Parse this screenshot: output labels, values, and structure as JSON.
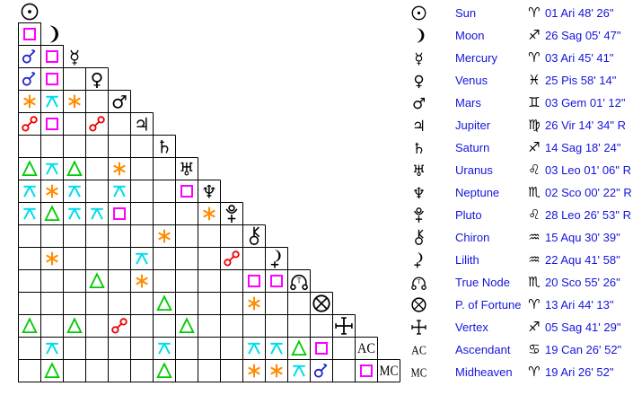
{
  "colors": {
    "conjunction": "#2323cc",
    "opposition": "#f00000",
    "square": "#ff00ff",
    "trine": "#00cc00",
    "sextile": "#ff8c00",
    "quincunx": "#00dcec",
    "table_text": "#1414dd",
    "glyph": "#000000"
  },
  "grid": {
    "planets": [
      "sun",
      "moon",
      "mercury",
      "venus",
      "mars",
      "jupiter",
      "saturn",
      "uranus",
      "neptune",
      "pluto",
      "chiron",
      "lilith",
      "true_node",
      "fortune",
      "vertex",
      "ac",
      "mc"
    ],
    "aspects": [
      {
        "row": 1,
        "col": 0,
        "aspect": "square"
      },
      {
        "row": 2,
        "col": 0,
        "aspect": "conjunction"
      },
      {
        "row": 2,
        "col": 1,
        "aspect": "square"
      },
      {
        "row": 3,
        "col": 0,
        "aspect": "conjunction"
      },
      {
        "row": 3,
        "col": 1,
        "aspect": "square"
      },
      {
        "row": 4,
        "col": 0,
        "aspect": "sextile"
      },
      {
        "row": 4,
        "col": 1,
        "aspect": "quincunx"
      },
      {
        "row": 4,
        "col": 2,
        "aspect": "sextile"
      },
      {
        "row": 5,
        "col": 0,
        "aspect": "opposition"
      },
      {
        "row": 5,
        "col": 1,
        "aspect": "square"
      },
      {
        "row": 5,
        "col": 3,
        "aspect": "opposition"
      },
      {
        "row": 7,
        "col": 0,
        "aspect": "trine"
      },
      {
        "row": 7,
        "col": 1,
        "aspect": "quincunx"
      },
      {
        "row": 7,
        "col": 2,
        "aspect": "trine"
      },
      {
        "row": 7,
        "col": 4,
        "aspect": "sextile"
      },
      {
        "row": 8,
        "col": 0,
        "aspect": "quincunx"
      },
      {
        "row": 8,
        "col": 1,
        "aspect": "sextile"
      },
      {
        "row": 8,
        "col": 2,
        "aspect": "quincunx"
      },
      {
        "row": 8,
        "col": 4,
        "aspect": "quincunx"
      },
      {
        "row": 8,
        "col": 7,
        "aspect": "square"
      },
      {
        "row": 9,
        "col": 0,
        "aspect": "quincunx"
      },
      {
        "row": 9,
        "col": 1,
        "aspect": "trine"
      },
      {
        "row": 9,
        "col": 2,
        "aspect": "quincunx"
      },
      {
        "row": 9,
        "col": 3,
        "aspect": "quincunx"
      },
      {
        "row": 9,
        "col": 4,
        "aspect": "square"
      },
      {
        "row": 9,
        "col": 8,
        "aspect": "sextile"
      },
      {
        "row": 10,
        "col": 6,
        "aspect": "sextile"
      },
      {
        "row": 11,
        "col": 1,
        "aspect": "sextile"
      },
      {
        "row": 11,
        "col": 5,
        "aspect": "quincunx"
      },
      {
        "row": 11,
        "col": 9,
        "aspect": "opposition"
      },
      {
        "row": 12,
        "col": 3,
        "aspect": "trine"
      },
      {
        "row": 12,
        "col": 5,
        "aspect": "sextile"
      },
      {
        "row": 12,
        "col": 10,
        "aspect": "square"
      },
      {
        "row": 12,
        "col": 11,
        "aspect": "square"
      },
      {
        "row": 13,
        "col": 6,
        "aspect": "trine"
      },
      {
        "row": 13,
        "col": 10,
        "aspect": "sextile"
      },
      {
        "row": 14,
        "col": 0,
        "aspect": "trine"
      },
      {
        "row": 14,
        "col": 2,
        "aspect": "trine"
      },
      {
        "row": 14,
        "col": 4,
        "aspect": "opposition"
      },
      {
        "row": 14,
        "col": 7,
        "aspect": "trine"
      },
      {
        "row": 15,
        "col": 1,
        "aspect": "quincunx"
      },
      {
        "row": 15,
        "col": 6,
        "aspect": "quincunx"
      },
      {
        "row": 15,
        "col": 10,
        "aspect": "quincunx"
      },
      {
        "row": 15,
        "col": 11,
        "aspect": "quincunx"
      },
      {
        "row": 15,
        "col": 12,
        "aspect": "trine"
      },
      {
        "row": 15,
        "col": 13,
        "aspect": "square"
      },
      {
        "row": 16,
        "col": 1,
        "aspect": "trine"
      },
      {
        "row": 16,
        "col": 6,
        "aspect": "trine"
      },
      {
        "row": 16,
        "col": 10,
        "aspect": "sextile"
      },
      {
        "row": 16,
        "col": 11,
        "aspect": "sextile"
      },
      {
        "row": 16,
        "col": 12,
        "aspect": "quincunx"
      },
      {
        "row": 16,
        "col": 13,
        "aspect": "conjunction"
      },
      {
        "row": 16,
        "col": 15,
        "aspect": "square"
      }
    ]
  },
  "table": {
    "rows": [
      {
        "glyph": "sun",
        "name": "Sun",
        "sign": "ari",
        "position": "01 Ari 48' 26\""
      },
      {
        "glyph": "moon",
        "name": "Moon",
        "sign": "sag",
        "position": "26 Sag 05' 47\""
      },
      {
        "glyph": "mercury",
        "name": "Mercury",
        "sign": "ari",
        "position": "03 Ari 45' 41\""
      },
      {
        "glyph": "venus",
        "name": "Venus",
        "sign": "pis",
        "position": "25 Pis 58' 14\""
      },
      {
        "glyph": "mars",
        "name": "Mars",
        "sign": "gem",
        "position": "03 Gem 01' 12\""
      },
      {
        "glyph": "jupiter",
        "name": "Jupiter",
        "sign": "vir",
        "position": "26 Vir 14' 34\" R"
      },
      {
        "glyph": "saturn",
        "name": "Saturn",
        "sign": "sag",
        "position": "14 Sag 18' 24\""
      },
      {
        "glyph": "uranus",
        "name": "Uranus",
        "sign": "leo",
        "position": "03 Leo 01' 06\" R"
      },
      {
        "glyph": "neptune",
        "name": "Neptune",
        "sign": "sco",
        "position": "02 Sco 00' 22\" R"
      },
      {
        "glyph": "pluto",
        "name": "Pluto",
        "sign": "leo",
        "position": "28 Leo 26' 53\" R"
      },
      {
        "glyph": "chiron",
        "name": "Chiron",
        "sign": "aqu",
        "position": "15 Aqu 30' 39\""
      },
      {
        "glyph": "lilith",
        "name": "Lilith",
        "sign": "aqu",
        "position": "22 Aqu 41' 58\""
      },
      {
        "glyph": "true_node",
        "name": "True Node",
        "sign": "sco",
        "position": "20 Sco 55' 26\""
      },
      {
        "glyph": "fortune",
        "name": "P. of Fortune",
        "sign": "ari",
        "position": "13 Ari 44' 13\""
      },
      {
        "glyph": "vertex",
        "name": "Vertex",
        "sign": "sag",
        "position": "05 Sag 41' 29\""
      },
      {
        "glyph": "ac",
        "name": "Ascendant",
        "sign": "can",
        "position": "19 Can 26' 52\""
      },
      {
        "glyph": "mc",
        "name": "Midheaven",
        "sign": "ari",
        "position": "19 Ari 26' 52\""
      }
    ]
  }
}
